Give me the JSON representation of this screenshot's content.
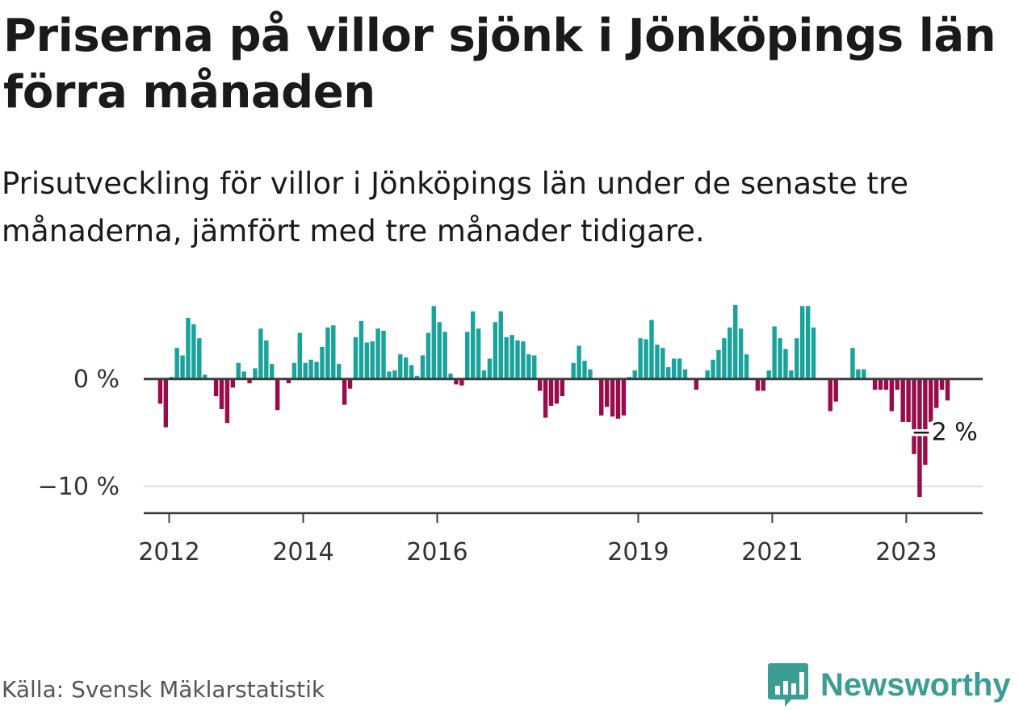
{
  "title": "Priserna på villor sjönk i Jönköpings län förra månaden",
  "subtitle": "Prisutveckling för villor i Jönköpings län under de senaste tre månaderna, jämfört med tre månader tidigare.",
  "source": "Källa: Svensk Mäklarstatistik",
  "brand": {
    "name": "Newsworthy",
    "icon": "bar-chart-speech-bubble-icon"
  },
  "colors": {
    "positive": "#1aa39b",
    "negative": "#990b4a",
    "axis": "#3c3c3c",
    "grid": "#dddddd"
  },
  "chart_data": {
    "type": "bar",
    "ylim": [
      -12.5,
      7.5
    ],
    "y_ticks": [
      {
        "value": 0,
        "label": "0 %"
      },
      {
        "value": -10,
        "label": "−10 %"
      }
    ],
    "x_range": [
      2011.62,
      2024.14
    ],
    "x_ticks": [
      {
        "value": 2012,
        "label": "2012"
      },
      {
        "value": 2014,
        "label": "2014"
      },
      {
        "value": 2016,
        "label": "2016"
      },
      {
        "value": 2019,
        "label": "2019"
      },
      {
        "value": 2021,
        "label": "2021"
      },
      {
        "value": 2023,
        "label": "2023"
      }
    ],
    "start": "2011-11",
    "interval": "month",
    "values": [
      -2.3,
      -4.5,
      0.2,
      2.9,
      2.2,
      5.7,
      5.1,
      3.8,
      0.4,
      0,
      -1.6,
      -2.8,
      -4.1,
      -0.8,
      1.5,
      0.7,
      -0.4,
      1,
      4.7,
      3.6,
      1.4,
      -2.9,
      0,
      -0.4,
      1.5,
      4.3,
      1.5,
      1.8,
      1.6,
      3,
      4.8,
      5,
      1.4,
      -2.4,
      -0.9,
      3.9,
      5.4,
      3.4,
      3.5,
      4.7,
      4.5,
      0.7,
      0.8,
      2.3,
      2,
      1.3,
      0.3,
      2.2,
      4.3,
      6.8,
      5.3,
      4.4,
      0.5,
      -0.5,
      -0.6,
      4.4,
      6.3,
      4.7,
      0.8,
      1.9,
      5.3,
      6.3,
      3.9,
      4.1,
      3.6,
      3.5,
      2.3,
      2.2,
      -1.1,
      -3.6,
      -2.5,
      -2.3,
      -1.6,
      0,
      1.5,
      3.1,
      1.7,
      0.9,
      0,
      -3.4,
      -2.6,
      -3.5,
      -3.7,
      -3.4,
      0.2,
      0.8,
      3.8,
      3.7,
      5.5,
      3.2,
      2.9,
      1.1,
      1.9,
      1.9,
      0.9,
      0,
      -1,
      0,
      0.8,
      1.8,
      2.7,
      3.8,
      4.8,
      6.9,
      4.7,
      2.3,
      0,
      -1.1,
      -1.1,
      0.8,
      4.9,
      3.8,
      2.8,
      0.8,
      3.8,
      6.8,
      6.8,
      4.8,
      0,
      0,
      -3,
      -2.1,
      0,
      0,
      2.9,
      0.9,
      0.9,
      0,
      -1,
      -1,
      -1,
      -3,
      -1,
      -4,
      -4,
      -7,
      -11,
      -8,
      -4,
      -2.7,
      -1,
      -2
    ],
    "end_label": "−2 %"
  }
}
